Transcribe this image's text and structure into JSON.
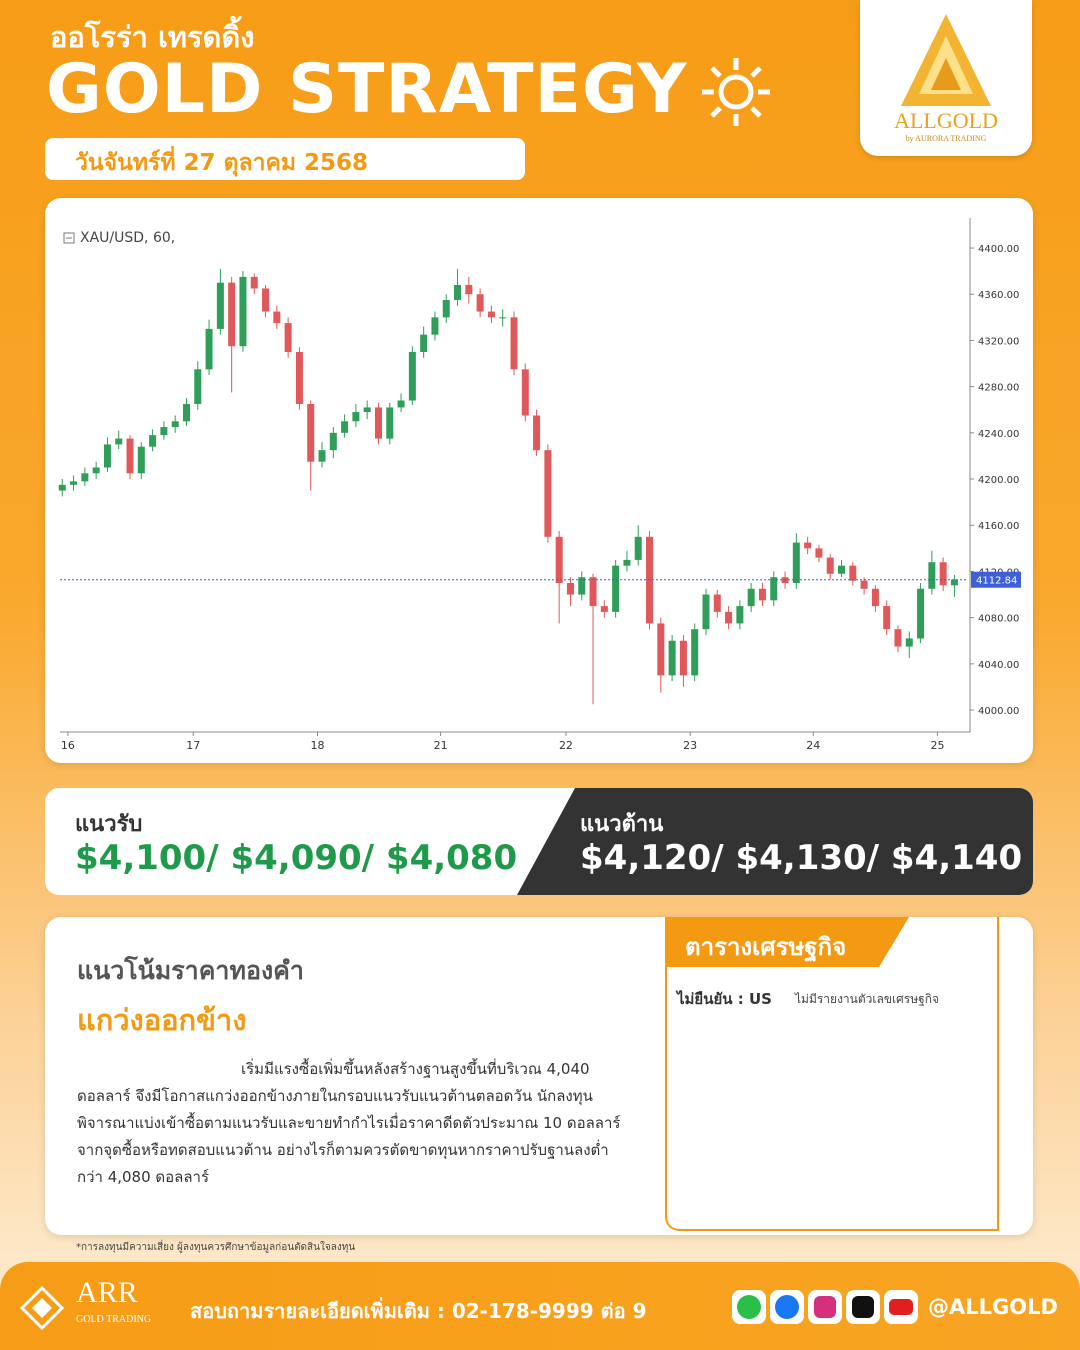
{
  "header": {
    "brand_thai": "ออโรร่า เทรดดิ้ง",
    "title": "GOLD STRATEGY",
    "date": "วันจันทร์ที่ 27 ตุลาคม 2568",
    "logo_name": "ALLGOLD",
    "logo_sub": "by AURORA TRADING"
  },
  "chart_data": {
    "type": "candlestick",
    "title": "XAU/USD, 60,",
    "up_color": "#2e9e58",
    "down_color": "#e0585a",
    "open": [
      4190,
      4195,
      4198,
      4205,
      4210,
      4230,
      4235,
      4205,
      4228,
      4238,
      4245,
      4250,
      4265,
      4295,
      4330,
      4370,
      4315,
      4375,
      4365,
      4345,
      4335,
      4310,
      4265,
      4215,
      4225,
      4240,
      4250,
      4258,
      4262,
      4235,
      4262,
      4268,
      4310,
      4325,
      4340,
      4355,
      4368,
      4360,
      4345,
      4340,
      4340,
      4295,
      4255,
      4225,
      4150,
      4110,
      4100,
      4115,
      4090,
      4085,
      4125,
      4130,
      4150,
      4075,
      4030,
      4060,
      4030,
      4070,
      4100,
      4085,
      4075,
      4090,
      4105,
      4095,
      4115,
      4110,
      4145,
      4140,
      4132,
      4118,
      4125,
      4112,
      4105,
      4090,
      4070,
      4055,
      4062,
      4105,
      4128,
      4108
    ],
    "high": [
      4200,
      4203,
      4210,
      4215,
      4236,
      4242,
      4238,
      4232,
      4243,
      4250,
      4255,
      4270,
      4302,
      4338,
      4382,
      4375,
      4380,
      4378,
      4368,
      4350,
      4340,
      4314,
      4268,
      4232,
      4245,
      4256,
      4265,
      4268,
      4266,
      4266,
      4274,
      4315,
      4332,
      4345,
      4360,
      4382,
      4375,
      4365,
      4350,
      4347,
      4345,
      4300,
      4260,
      4230,
      4155,
      4115,
      4120,
      4118,
      4095,
      4130,
      4138,
      4160,
      4155,
      4080,
      4065,
      4065,
      4075,
      4105,
      4104,
      4090,
      4095,
      4110,
      4110,
      4120,
      4120,
      4153,
      4150,
      4143,
      4135,
      4130,
      4128,
      4115,
      4108,
      4095,
      4073,
      4068,
      4110,
      4138,
      4132,
      4117
    ],
    "low": [
      4185,
      4190,
      4194,
      4200,
      4206,
      4226,
      4200,
      4200,
      4224,
      4234,
      4240,
      4246,
      4260,
      4290,
      4325,
      4275,
      4310,
      4360,
      4340,
      4330,
      4305,
      4260,
      4190,
      4210,
      4218,
      4236,
      4245,
      4252,
      4230,
      4230,
      4258,
      4264,
      4305,
      4320,
      4335,
      4350,
      4352,
      4340,
      4335,
      4332,
      4290,
      4250,
      4220,
      4145,
      4075,
      4090,
      4095,
      4005,
      4080,
      4080,
      4120,
      4125,
      4070,
      4015,
      4025,
      4020,
      4025,
      4065,
      4080,
      4070,
      4070,
      4085,
      4090,
      4090,
      4105,
      4105,
      4135,
      4128,
      4113,
      4115,
      4108,
      4100,
      4085,
      4065,
      4050,
      4045,
      4058,
      4100,
      4103,
      4098
    ],
    "close": [
      4195,
      4198,
      4205,
      4210,
      4230,
      4235,
      4205,
      4228,
      4238,
      4245,
      4250,
      4265,
      4295,
      4330,
      4370,
      4315,
      4375,
      4365,
      4345,
      4335,
      4310,
      4265,
      4215,
      4225,
      4240,
      4250,
      4258,
      4262,
      4235,
      4262,
      4268,
      4310,
      4325,
      4340,
      4355,
      4368,
      4360,
      4345,
      4340,
      4340,
      4295,
      4255,
      4225,
      4150,
      4110,
      4100,
      4115,
      4090,
      4085,
      4125,
      4130,
      4150,
      4075,
      4030,
      4060,
      4030,
      4070,
      4100,
      4085,
      4075,
      4090,
      4105,
      4095,
      4115,
      4110,
      4145,
      4140,
      4132,
      4118,
      4125,
      4112,
      4105,
      4090,
      4070,
      4055,
      4062,
      4105,
      4128,
      4108,
      4113
    ],
    "xlim": [
      -0.2,
      80.2
    ],
    "xticks": [
      {
        "value": 0.5,
        "label": "16"
      },
      {
        "value": 11.6,
        "label": "17"
      },
      {
        "value": 22.6,
        "label": "18"
      },
      {
        "value": 33.5,
        "label": "21"
      },
      {
        "value": 44.6,
        "label": "22"
      },
      {
        "value": 55.6,
        "label": "23"
      },
      {
        "value": 66.5,
        "label": "24"
      },
      {
        "value": 77.5,
        "label": "25"
      }
    ],
    "ylim": [
      3981,
      4426
    ],
    "yticks": [
      {
        "value": 4000,
        "label": "4000.00"
      },
      {
        "value": 4040,
        "label": "4040.00"
      },
      {
        "value": 4080,
        "label": "4080.00"
      },
      {
        "value": 4120,
        "label": "4120.00"
      },
      {
        "value": 4160,
        "label": "4160.00"
      },
      {
        "value": 4200,
        "label": "4200.00"
      },
      {
        "value": 4240,
        "label": "4240.00"
      },
      {
        "value": 4280,
        "label": "4280.00"
      },
      {
        "value": 4320,
        "label": "4320.00"
      },
      {
        "value": 4360,
        "label": "4360.00"
      },
      {
        "value": 4400,
        "label": "4400.00"
      }
    ],
    "last_price": 4112.84,
    "last_price_color": "#3f5fd8",
    "grid": false
  },
  "levels": {
    "support_label": "แนวรับ",
    "support_values": "$4,100/ $4,090/ $4,080",
    "resistance_label": "แนวต้าน",
    "resistance_values": "$4,120/ $4,130/ $4,140"
  },
  "analysis": {
    "heading": "แนวโน้มราคาทองคำ",
    "trend": "แกว่งออกข้าง",
    "lines": [
      "เริ่มมีแรงซื้อเพิ่มขึ้นหลังสร้างฐานสูงขึ้นที่บริเวณ 4,040",
      "ดอลลาร์ จึงมีโอกาสแกว่งออกข้างภายในกรอบแนวรับแนวต้านตลอดวัน นักลงทุน",
      "พิจารณาแบ่งเข้าซื้อตามแนวรับและขายทำกำไรเมื่อราคาดีดตัวประมาณ 10 ดอลลาร์",
      "จากจุดซื้อหรือทดสอบแนวต้าน อย่างไรก็ตามควรตัดขาดทุนหากราคาปรับฐานลงต่ำ",
      "กว่า 4,080 ดอลลาร์"
    ]
  },
  "calendar": {
    "title": "ตารางเศรษฐกิจ",
    "status": "ไม่ยืนยัน : US",
    "note": "ไม่มีรายงานตัวเลขเศรษฐกิจ"
  },
  "disclaimer": "*การลงทุนมีความเสี่ยง ผู้ลงทุนควรศึกษาข้อมูลก่อนตัดสินใจลงทุน",
  "footer": {
    "brand": "ARR",
    "brand_sub": "GOLD TRADING",
    "contact": "สอบถามรายละเอียดเพิ่มเติม : 02-178-9999 ต่อ 9",
    "handle": "@ALLGOLD"
  }
}
